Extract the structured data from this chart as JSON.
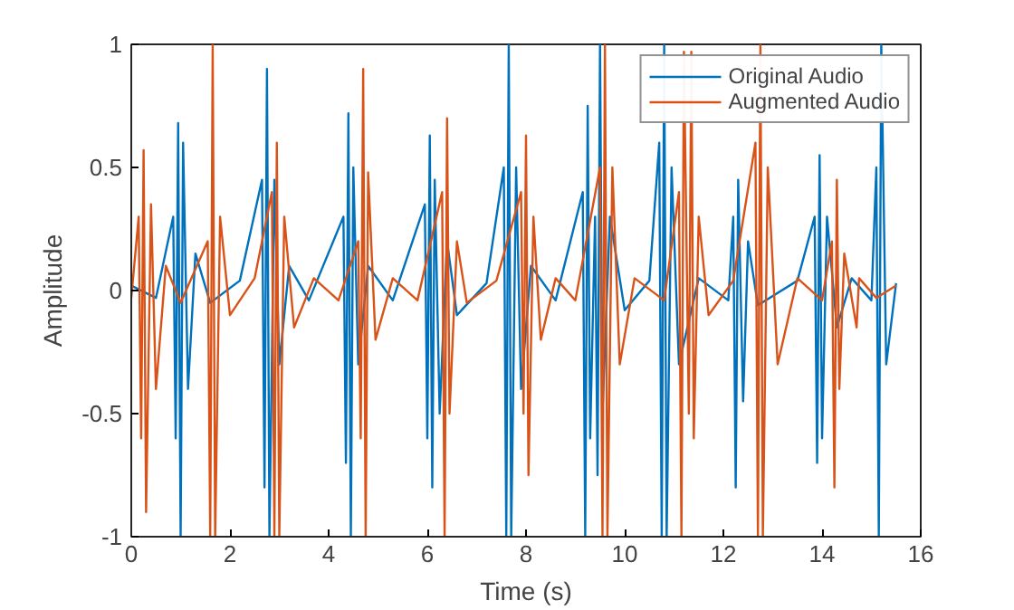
{
  "chart_data": {
    "type": "line",
    "xlabel": "Time (s)",
    "ylabel": "Amplitude",
    "xlim": [
      0,
      16
    ],
    "ylim": [
      -1,
      1
    ],
    "xticks": [
      0,
      2,
      4,
      6,
      8,
      10,
      12,
      14,
      16
    ],
    "yticks": [
      -1,
      -0.5,
      0,
      0.5,
      1
    ],
    "grid": false,
    "legend": "top right",
    "marker": "none",
    "line_style": "solid",
    "series": [
      {
        "name": "Original Audio",
        "color": "#0072bd",
        "x": [
          0,
          0.5,
          0.85,
          0.9,
          0.95,
          1.0,
          1.05,
          1.15,
          1.3,
          1.6,
          2.2,
          2.65,
          2.7,
          2.75,
          2.8,
          2.9,
          3.0,
          3.2,
          3.6,
          4.3,
          4.35,
          4.4,
          4.45,
          4.5,
          4.6,
          4.8,
          5.3,
          5.95,
          6.0,
          6.05,
          6.1,
          6.15,
          6.25,
          6.4,
          6.6,
          7.2,
          7.55,
          7.6,
          7.65,
          7.7,
          7.8,
          7.9,
          8.1,
          8.6,
          9.15,
          9.2,
          9.25,
          9.3,
          9.4,
          9.45,
          9.5,
          9.55,
          9.7,
          10.0,
          10.5,
          10.7,
          10.75,
          10.8,
          10.85,
          10.95,
          11.1,
          11.5,
          12.1,
          12.2,
          12.25,
          12.3,
          12.4,
          12.5,
          12.7,
          13.5,
          13.85,
          13.9,
          13.95,
          14.0,
          14.1,
          14.3,
          14.6,
          15.0,
          15.1,
          15.15,
          15.2,
          15.3,
          15.5
        ],
        "values": [
          0.02,
          -0.03,
          0.3,
          -0.6,
          0.68,
          -1,
          0.6,
          -0.4,
          0.15,
          -0.05,
          0.04,
          0.45,
          -0.8,
          0.9,
          -1,
          0.45,
          -0.3,
          0.1,
          -0.04,
          0.3,
          -0.7,
          0.72,
          -1,
          0.5,
          -0.3,
          0.1,
          -0.04,
          0.35,
          -0.6,
          0.63,
          -0.8,
          0.45,
          -0.5,
          0.2,
          -0.1,
          0.03,
          0.5,
          -1,
          1,
          -1,
          0.5,
          -0.4,
          0.1,
          -0.04,
          0.4,
          -1,
          0.75,
          -0.6,
          0.3,
          -0.75,
          1,
          -0.5,
          0.3,
          -0.08,
          0.04,
          0.6,
          -1,
          1,
          -1,
          0.5,
          -0.3,
          0.05,
          -0.04,
          0.3,
          -0.8,
          0.45,
          -0.45,
          0.2,
          -0.06,
          0.04,
          0.3,
          -0.7,
          0.55,
          -0.6,
          0.3,
          -0.15,
          0.05,
          -0.04,
          0.5,
          -1,
          1,
          -0.3,
          0.03
        ]
      },
      {
        "name": "Augmented Audio",
        "color": "#d95319",
        "x": [
          0,
          0.15,
          0.2,
          0.25,
          0.3,
          0.4,
          0.5,
          0.7,
          1.0,
          1.55,
          1.6,
          1.65,
          1.7,
          1.8,
          2.0,
          2.5,
          2.85,
          2.9,
          2.95,
          3.0,
          3.1,
          3.3,
          3.7,
          4.2,
          4.6,
          4.65,
          4.7,
          4.75,
          4.8,
          4.95,
          5.3,
          5.8,
          6.3,
          6.35,
          6.4,
          6.45,
          6.6,
          6.8,
          7.4,
          7.9,
          7.95,
          8.0,
          8.05,
          8.15,
          8.3,
          8.6,
          9.0,
          9.5,
          9.55,
          9.6,
          9.65,
          9.75,
          9.9,
          10.2,
          10.8,
          11.1,
          11.15,
          11.2,
          11.3,
          11.35,
          11.4,
          11.5,
          11.7,
          12.2,
          12.65,
          12.7,
          12.75,
          12.8,
          12.9,
          13.1,
          13.5,
          14.0,
          14.2,
          14.25,
          14.3,
          14.35,
          14.45,
          14.7,
          14.75,
          15.1,
          15.5
        ],
        "values": [
          -0.03,
          0.3,
          -0.6,
          0.57,
          -0.9,
          0.35,
          -0.4,
          0.1,
          -0.05,
          0.2,
          -1,
          1,
          -1,
          0.3,
          -0.1,
          0.05,
          0.4,
          -1,
          0.6,
          -1,
          0.3,
          -0.15,
          0.05,
          -0.04,
          0.2,
          -0.6,
          0.9,
          -1,
          0.48,
          -0.2,
          0.05,
          -0.04,
          0.4,
          -1,
          0.7,
          -0.5,
          0.2,
          -0.05,
          0.04,
          0.4,
          -0.5,
          0.63,
          -0.75,
          0.3,
          -0.2,
          0.05,
          -0.04,
          0.5,
          -1,
          1,
          -1,
          0.5,
          -0.3,
          0.05,
          -0.04,
          0.4,
          -1,
          0.97,
          -0.5,
          0.97,
          -0.6,
          0.3,
          -0.1,
          0.04,
          0.6,
          -1,
          1,
          -1,
          0.5,
          -0.3,
          0.05,
          -0.04,
          0.2,
          -0.8,
          0.45,
          -0.4,
          0.15,
          -0.15,
          0.05,
          -0.03,
          0.02
        ]
      }
    ]
  }
}
